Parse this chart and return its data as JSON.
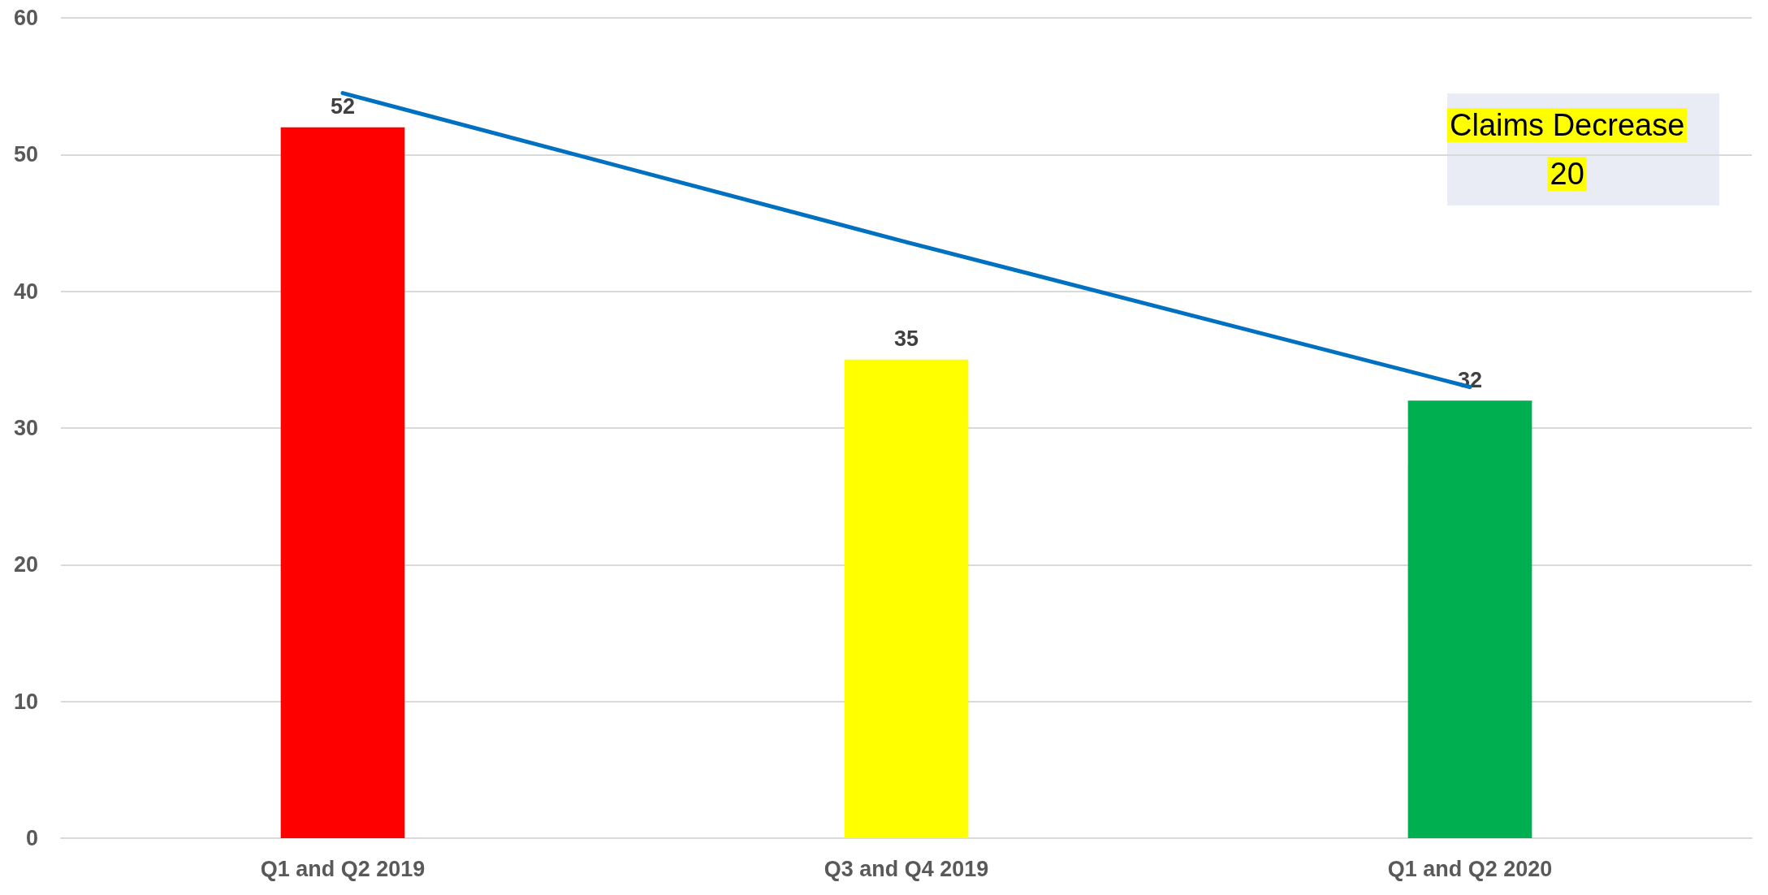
{
  "chart_data": {
    "type": "bar",
    "categories": [
      "Q1 and Q2 2019",
      "Q3 and Q4 2019",
      "Q1 and Q2 2020"
    ],
    "series": [
      {
        "colors": [
          "#ff0000",
          "#ffff00",
          "#00b050"
        ],
        "values": [
          52,
          35,
          32
        ],
        "value_labels": [
          "52",
          "35",
          "32"
        ]
      },
      {
        "type": "line",
        "color": "#0070c0",
        "values": [
          54.5,
          43.6,
          33
        ],
        "marker": "none"
      }
    ],
    "ylim": [
      0,
      60
    ],
    "yticks": [
      0,
      10,
      20,
      30,
      40,
      50,
      60
    ],
    "grid": "y",
    "annotations": [
      "Claims Decrease\n20"
    ]
  }
}
